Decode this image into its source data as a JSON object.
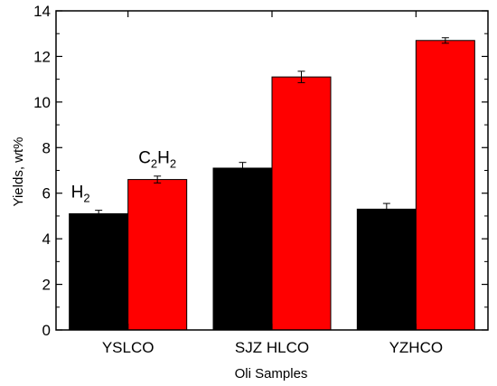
{
  "chart_data": {
    "type": "bar",
    "categories": [
      "YSLCO",
      "SJZ HLCO",
      "YZHCO"
    ],
    "series": [
      {
        "values": [
          5.1,
          7.1,
          5.3
        ],
        "errors": [
          0.15,
          0.25,
          0.25
        ],
        "color": "#000000"
      },
      {
        "values": [
          6.6,
          11.1,
          12.7
        ],
        "errors": [
          0.15,
          0.25,
          0.12
        ],
        "color": "#ff0000"
      }
    ],
    "xlabel": "Oli Samples",
    "ylabel": "Yields,  wt%",
    "ylim": [
      0,
      14
    ],
    "yticks": [
      "0",
      "2",
      "4",
      "6",
      "8",
      "10",
      "12",
      "14"
    ],
    "annotations": [
      {
        "base": "H",
        "sub": "2",
        "series_index": 0,
        "category_index": 0
      },
      {
        "base": "C",
        "sub": "2",
        "base2": "H",
        "sub2": "2",
        "series_index": 1,
        "category_index": 0
      }
    ],
    "grid": false,
    "legend": "none"
  }
}
